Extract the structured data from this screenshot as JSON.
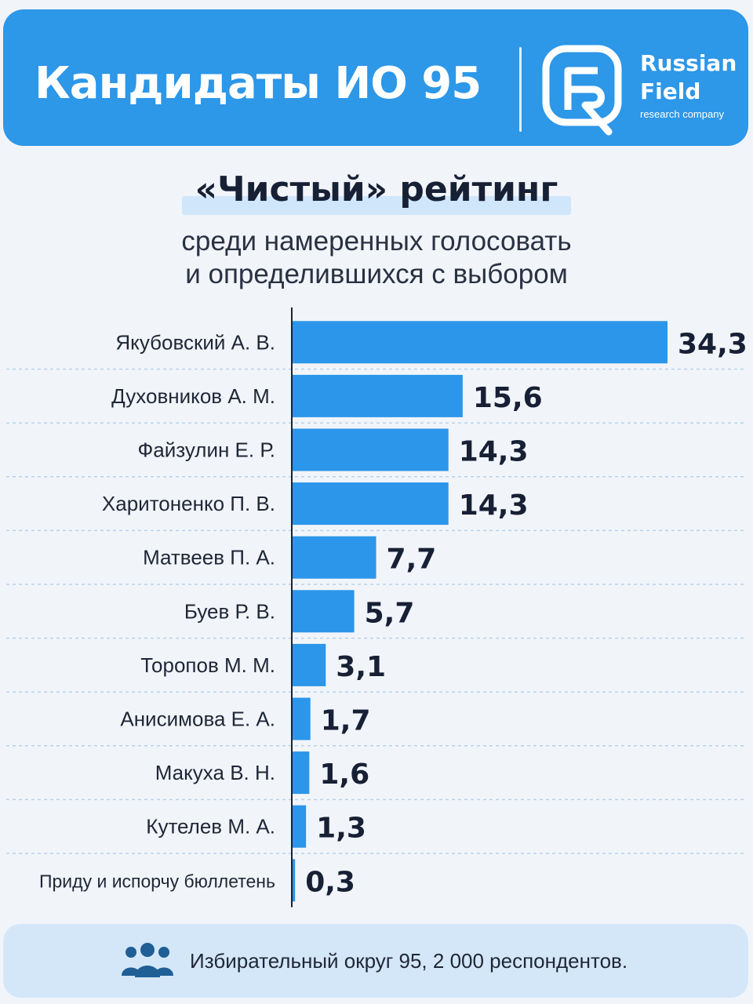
{
  "header": {
    "title": "Кандидаты ИО 95",
    "brand_line1": "Russian",
    "brand_line2": "Field",
    "brand_tagline": "research company",
    "logo_icon": "russian-field-logo-icon"
  },
  "colors": {
    "accent": "#2d97e8",
    "bar": "#2b96ea",
    "footer_bg": "#d4e7f8"
  },
  "chart_data": {
    "type": "bar",
    "orientation": "horizontal",
    "title": "«Чистый» рейтинг",
    "subtitle": [
      "среди намеренных голосовать",
      "и определившихся с выбором"
    ],
    "categories": [
      "Якубовский А. В.",
      "Духовников А. М.",
      "Файзулин Е. Р.",
      "Харитоненко П. В.",
      "Матвеев П. А.",
      "Буев Р. В.",
      "Торопов М. М.",
      "Анисимова Е. А.",
      "Макуха В. Н.",
      "Кутелев М. А.",
      "Приду и испорчу бюллетень"
    ],
    "values": [
      34.3,
      15.6,
      14.3,
      14.3,
      7.7,
      5.7,
      3.1,
      1.7,
      1.6,
      1.3,
      0.3
    ],
    "value_labels": [
      "34,3",
      "15,6",
      "14,3",
      "14,3",
      "7,7",
      "5,7",
      "3,1",
      "1,7",
      "1,6",
      "1,3",
      "0,3"
    ],
    "xlim": [
      0,
      34.3
    ],
    "grid": "dashed horizontal separators",
    "legend": "none"
  },
  "footer": {
    "icon": "people-icon",
    "text": "Избирательный округ 95, 2 000 респондентов."
  }
}
